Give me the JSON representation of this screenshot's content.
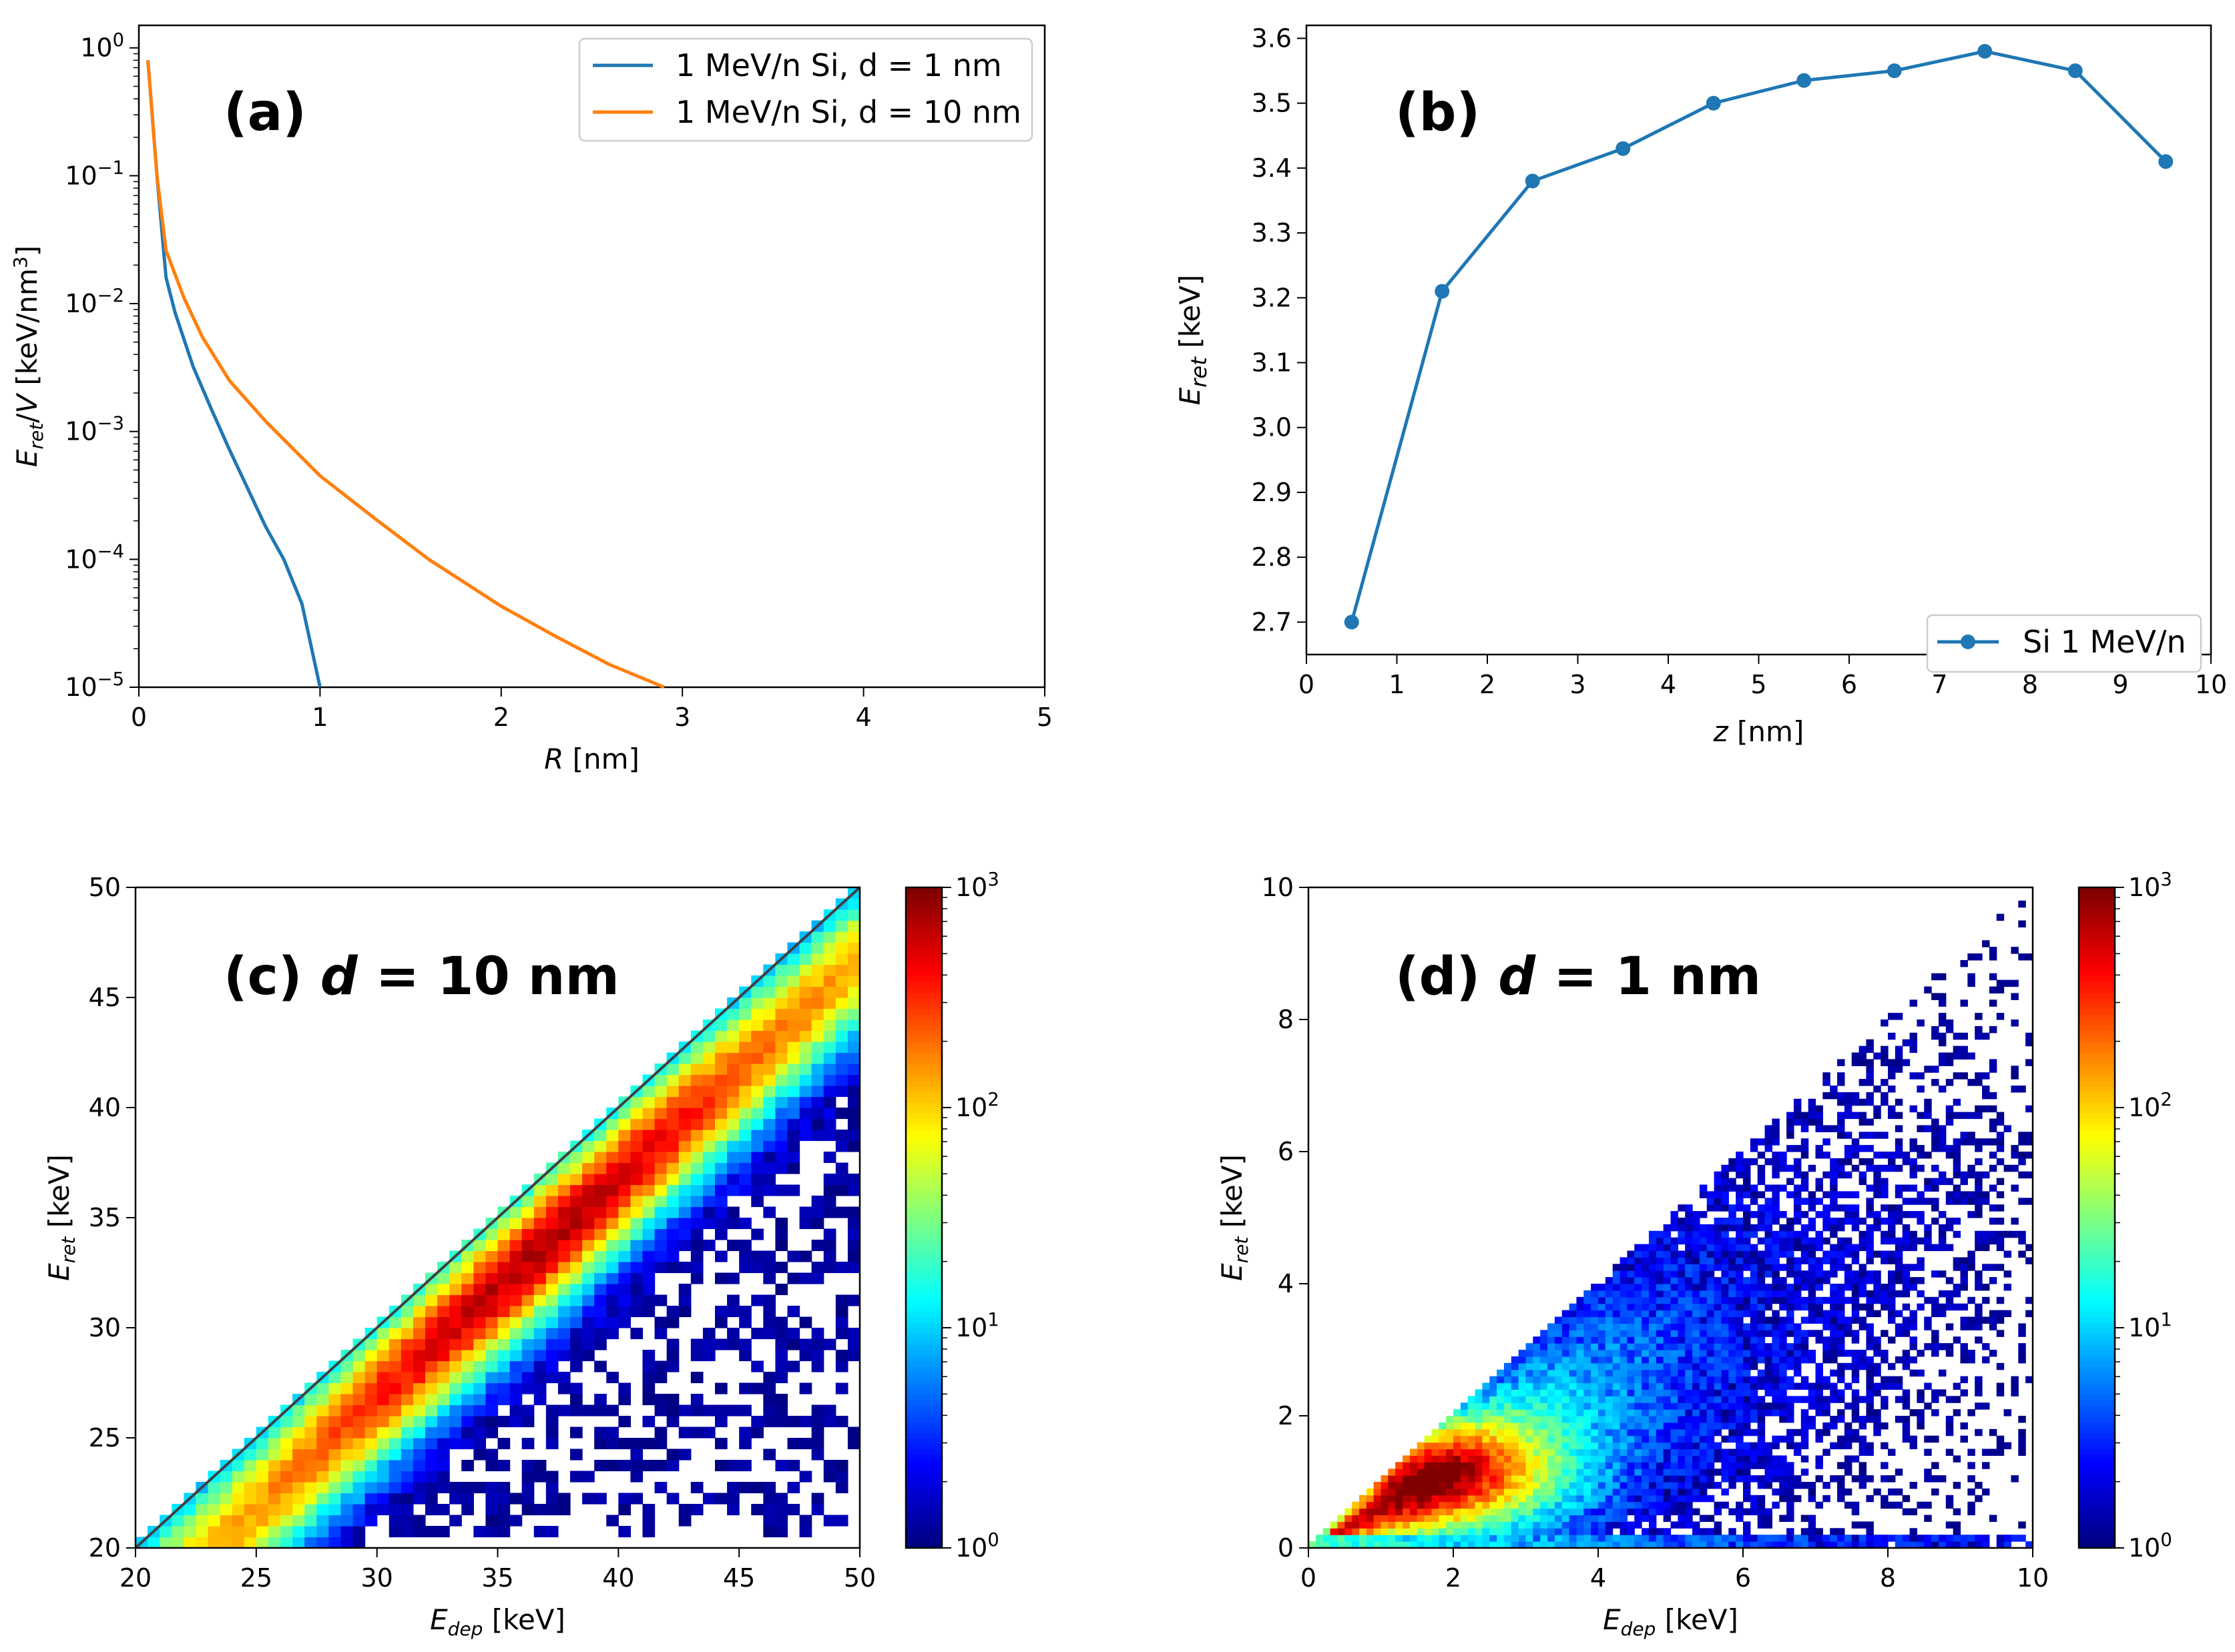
{
  "chart_data": [
    {
      "id": "a",
      "type": "line",
      "panel_label": "(a)",
      "xscale": "linear",
      "yscale": "log",
      "xlim": [
        0,
        5
      ],
      "ylim": [
        1e-05,
        1.5
      ],
      "xticks": [
        "0",
        "1",
        "2",
        "3",
        "4",
        "5"
      ],
      "yticks": [
        {
          "base": "10",
          "exp": "0"
        },
        {
          "base": "10",
          "exp": "−1"
        },
        {
          "base": "10",
          "exp": "−2"
        },
        {
          "base": "10",
          "exp": "−3"
        },
        {
          "base": "10",
          "exp": "−4"
        },
        {
          "base": "10",
          "exp": "−5"
        }
      ],
      "xlabel": {
        "var": "R",
        "rest": " [nm]"
      },
      "ylabel": {
        "var": "E",
        "sub": "ret",
        "mid": "/",
        "var2": "V",
        "rest": " [keV/nm",
        "sup": "3",
        "end": "]"
      },
      "legend_position": "top-right",
      "series": [
        {
          "name": "1 MeV/n Si, d = 1 nm",
          "color": "#1f77b4",
          "x": [
            0.05,
            0.1,
            0.15,
            0.2,
            0.3,
            0.4,
            0.5,
            0.6,
            0.7,
            0.8,
            0.9,
            1.0
          ],
          "y": [
            0.8,
            0.1,
            0.016,
            0.0085,
            0.0032,
            0.0015,
            0.00072,
            0.00036,
            0.00018,
            0.0001,
            4.5e-05,
            1e-05
          ]
        },
        {
          "name": "1 MeV/n Si, d = 10 nm",
          "color": "#ff7f0e",
          "x": [
            0.05,
            0.1,
            0.15,
            0.25,
            0.35,
            0.5,
            0.7,
            1.0,
            1.3,
            1.6,
            2.0,
            2.3,
            2.6,
            2.9
          ],
          "y": [
            0.8,
            0.1,
            0.026,
            0.011,
            0.0055,
            0.0025,
            0.0012,
            0.00045,
            0.00021,
            0.0001,
            4.3e-05,
            2.5e-05,
            1.5e-05,
            1e-05
          ]
        }
      ]
    },
    {
      "id": "b",
      "type": "line",
      "panel_label": "(b)",
      "xlim": [
        0,
        10
      ],
      "ylim": [
        2.65,
        3.62
      ],
      "xticks": [
        "0",
        "1",
        "2",
        "3",
        "4",
        "5",
        "6",
        "7",
        "8",
        "9",
        "10"
      ],
      "yticks": [
        "2.7",
        "2.8",
        "2.9",
        "3.0",
        "3.1",
        "3.2",
        "3.3",
        "3.4",
        "3.5",
        "3.6"
      ],
      "xlabel": {
        "var": "z",
        "rest": " [nm]"
      },
      "ylabel": {
        "var": "E",
        "sub": "ret",
        "rest": " [keV]"
      },
      "legend_position": "bottom-right",
      "series": [
        {
          "name": "Si 1 MeV/n",
          "color": "#1f77b4",
          "marker": "circle",
          "x": [
            0.5,
            1.5,
            2.5,
            3.5,
            4.5,
            5.5,
            6.5,
            7.5,
            8.5,
            9.5
          ],
          "y": [
            2.7,
            3.21,
            3.38,
            3.43,
            3.5,
            3.535,
            3.55,
            3.58,
            3.55,
            3.41
          ]
        }
      ]
    },
    {
      "id": "c",
      "type": "heatmap",
      "panel_label": "(c) ",
      "panel_var": "d",
      "panel_rest": " = 10 nm",
      "xlim": [
        20,
        50
      ],
      "ylim": [
        20,
        50
      ],
      "xticks": [
        "20",
        "25",
        "30",
        "35",
        "40",
        "45",
        "50"
      ],
      "yticks": [
        "20",
        "25",
        "30",
        "35",
        "40",
        "45",
        "50"
      ],
      "xlabel": {
        "var": "E",
        "sub": "dep",
        "rest": " [keV]"
      },
      "ylabel": {
        "var": "E",
        "sub": "ret",
        "rest": " [keV]"
      },
      "diagonal_line": true,
      "bins": 60,
      "peak_counts": 300,
      "description": "counts concentrated in a band below the diagonal Eret = Edep, peak near Eret ≈ Edep − 3 keV",
      "colorbar": {
        "scale": "log",
        "range": [
          1,
          1000
        ],
        "ticks": [
          {
            "base": "10",
            "exp": "0"
          },
          {
            "base": "10",
            "exp": "1"
          },
          {
            "base": "10",
            "exp": "2"
          },
          {
            "base": "10",
            "exp": "3"
          }
        ],
        "colormap": "jet"
      }
    },
    {
      "id": "d",
      "type": "heatmap",
      "panel_label": "(d)  ",
      "panel_var": "d",
      "panel_rest": " = 1 nm",
      "xlim": [
        0,
        10
      ],
      "ylim": [
        0,
        10
      ],
      "xticks": [
        "0",
        "2",
        "4",
        "6",
        "8",
        "10"
      ],
      "yticks": [
        "0",
        "2",
        "4",
        "6",
        "8",
        "10"
      ],
      "xlabel": {
        "var": "E",
        "sub": "dep",
        "rest": " [keV]"
      },
      "ylabel": {
        "var": "E",
        "sub": "ret",
        "rest": " [keV]"
      },
      "diagonal_line": false,
      "bins": 100,
      "peak_counts": 900,
      "description": "counts fill triangle Eret < Edep, peak near Edep ≈ 1.8 keV, Eret ≈ 1.1 keV, sparse toward high Edep",
      "colorbar": {
        "scale": "log",
        "range": [
          1,
          1000
        ],
        "ticks": [
          {
            "base": "10",
            "exp": "0"
          },
          {
            "base": "10",
            "exp": "1"
          },
          {
            "base": "10",
            "exp": "2"
          },
          {
            "base": "10",
            "exp": "3"
          }
        ],
        "colormap": "jet"
      }
    }
  ]
}
